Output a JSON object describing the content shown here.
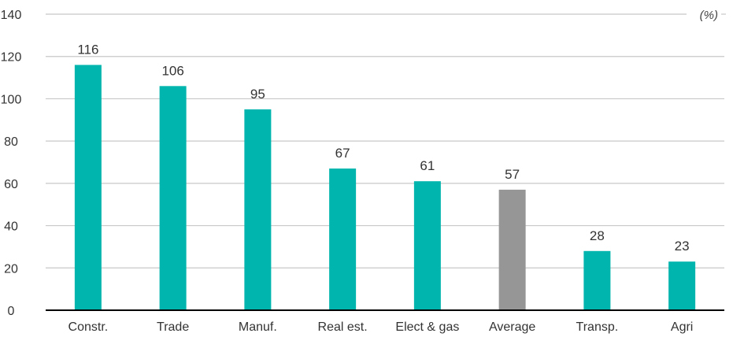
{
  "chart_data": {
    "type": "bar",
    "unit_label": "(%)",
    "categories": [
      "Constr.",
      "Trade",
      "Manuf.",
      "Real est.",
      "Elect & gas",
      "Average",
      "Transp.",
      "Agri"
    ],
    "values": [
      116,
      106,
      95,
      67,
      61,
      57,
      28,
      23
    ],
    "value_labels": [
      "116",
      "106",
      "95",
      "67",
      "61",
      "57",
      "28",
      "23"
    ],
    "y_ticks": [
      "0",
      "20",
      "40",
      "60",
      "80",
      "100",
      "120",
      "140"
    ],
    "ylim": [
      0,
      140
    ],
    "grid": true,
    "colors": {
      "bar": "#00b5ad",
      "highlight_bar": "#969696",
      "grid": "#c8c8c8",
      "axis": "#000000"
    },
    "highlight_category": "Average"
  }
}
